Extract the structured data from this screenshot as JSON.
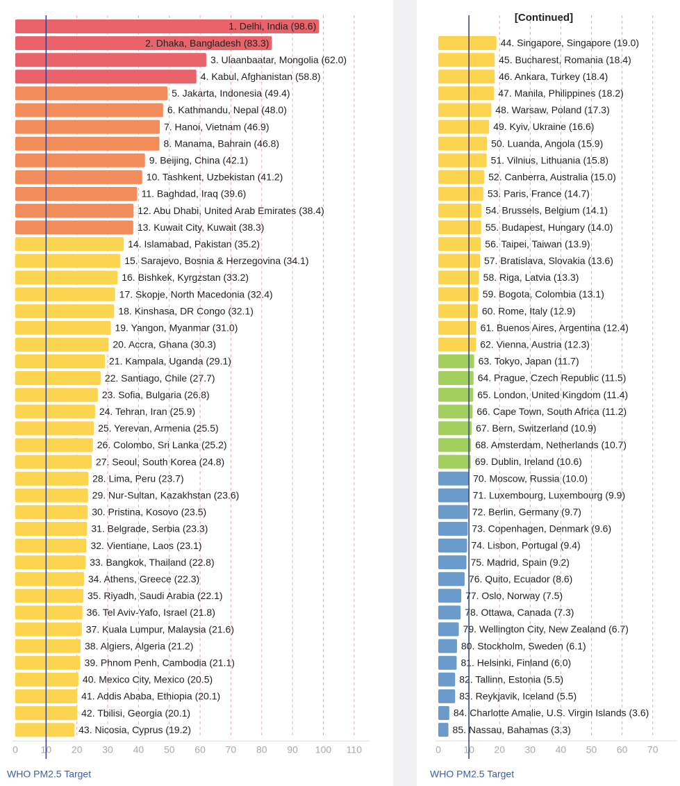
{
  "chart_data": [
    {
      "type": "bar",
      "categories": [
        "1. Delhi, India (98.6)",
        "2. Dhaka, Bangladesh (83.3)",
        "3. Ulaanbaatar, Mongolia (62.0)",
        "4. Kabul, Afghanistan (58.8)",
        "5. Jakarta, Indonesia (49.4)",
        "6. Kathmandu, Nepal (48.0)",
        "7. Hanoi, Vietnam (46.9)",
        "8. Manama, Bahrain (46.8)",
        "9. Beijing, China (42.1)",
        "10. Tashkent, Uzbekistan (41.2)",
        "11. Baghdad, Iraq (39.6)",
        "12. Abu Dhabi, United Arab Emirates (38.4)",
        "13. Kuwait City, Kuwait (38.3)",
        "14. Islamabad, Pakistan (35.2)",
        "15. Sarajevo, Bosnia & Herzegovina (34.1)",
        "16. Bishkek, Kyrgzstan (33.2)",
        "17. Skopje, North Macedonia (32.4)",
        "18. Kinshasa, DR Congo (32.1)",
        "19. Yangon, Myanmar (31.0)",
        "20. Accra, Ghana (30.3)",
        "21. Kampala, Uganda (29.1)",
        "22. Santiago, Chile (27.7)",
        "23. Sofia, Bulgaria (26.8)",
        "24. Tehran, Iran (25.9)",
        "25. Yerevan, Armenia (25.5)",
        "26. Colombo, Sri Lanka (25.2)",
        "27. Seoul, South Korea (24.8)",
        "28. Lima, Peru (23.7)",
        "29. Nur-Sultan, Kazakhstan (23.6)",
        "30. Pristina, Kosovo (23.5)",
        "31. Belgrade, Serbia (23.3)",
        "32. Vientiane, Laos (23.1)",
        "33. Bangkok, Thailand (22.8)",
        "34. Athens, Greece (22.3)",
        "35. Riyadh, Saudi Arabia (22.1)",
        "36. Tel Aviv-Yafo, Israel (21.8)",
        "37. Kuala Lumpur, Malaysia (21.6)",
        "38. Algiers, Algeria (21.2)",
        "39. Phnom Penh, Cambodia (21.1)",
        "40. Mexico City, Mexico (20.5)",
        "41. Addis Ababa, Ethiopia (20.1)",
        "42. Tbilisi, Georgia (20.1)",
        "43. Nicosia, Cyprus (19.2)"
      ],
      "values": [
        98.6,
        83.3,
        62.0,
        58.8,
        49.4,
        48.0,
        46.9,
        46.8,
        42.1,
        41.2,
        39.6,
        38.4,
        38.3,
        35.2,
        34.1,
        33.2,
        32.4,
        32.1,
        31.0,
        30.3,
        29.1,
        27.7,
        26.8,
        25.9,
        25.5,
        25.2,
        24.8,
        23.7,
        23.6,
        23.5,
        23.3,
        23.1,
        22.8,
        22.3,
        22.1,
        21.8,
        21.6,
        21.2,
        21.1,
        20.5,
        20.1,
        20.1,
        19.2
      ],
      "colors": [
        "#e9636b",
        "#e9636b",
        "#e9636b",
        "#e9636b",
        "#f28c5a",
        "#f28c5a",
        "#f28c5a",
        "#f28c5a",
        "#f28c5a",
        "#f28c5a",
        "#f28c5a",
        "#f28c5a",
        "#f28c5a",
        "#fcd450",
        "#fcd450",
        "#fcd450",
        "#fcd450",
        "#fcd450",
        "#fcd450",
        "#fcd450",
        "#fcd450",
        "#fcd450",
        "#fcd450",
        "#fcd450",
        "#fcd450",
        "#fcd450",
        "#fcd450",
        "#fcd450",
        "#fcd450",
        "#fcd450",
        "#fcd450",
        "#fcd450",
        "#fcd450",
        "#fcd450",
        "#fcd450",
        "#fcd450",
        "#fcd450",
        "#fcd450",
        "#fcd450",
        "#fcd450",
        "#fcd450",
        "#fcd450",
        "#fcd450"
      ],
      "xlim": [
        0,
        115
      ],
      "xticks": [
        0,
        10,
        20,
        30,
        40,
        50,
        60,
        70,
        80,
        90,
        100,
        110
      ],
      "grid": true,
      "annotation": {
        "text": "WHO PM2.5 Target",
        "x": 10
      }
    },
    {
      "type": "bar",
      "title": "[Continued]",
      "categories": [
        "44. Singapore, Singapore (19.0)",
        "45. Bucharest, Romania (18.4)",
        "46. Ankara, Turkey (18.4)",
        "47. Manila, Philippines (18.2)",
        "48. Warsaw, Poland (17.3)",
        "49. Kyiv, Ukraine (16.6)",
        "50. Luanda, Angola (15.9)",
        "51. Vilnius, Lithuania (15.8)",
        "52. Canberra, Australia (15.0)",
        "53. Paris, France (14.7)",
        "54. Brussels, Belgium (14.1)",
        "55. Budapest, Hungary (14.0)",
        "56. Taipei, Taiwan (13.9)",
        "57. Bratislava, Slovakia (13.6)",
        "58. Riga, Latvia (13.3)",
        "59. Bogota, Colombia (13.1)",
        "60. Rome, Italy (12.9)",
        "61. Buenos Aires, Argentina (12.4)",
        "62. Vienna, Austria (12.3)",
        "63. Tokyo, Japan (11.7)",
        "64. Prague, Czech Republic (11.5)",
        "65. London, United Kingdom (11.4)",
        "66. Cape Town, South Africa (11.2)",
        "67. Bern, Switzerland (10.9)",
        "68. Amsterdam, Netherlands (10.7)",
        "69. Dublin, Ireland (10.6)",
        "70. Moscow, Russia (10.0)",
        "71. Luxembourg, Luxembourg (9.9)",
        "72. Berlin, Germany (9.7)",
        "73. Copenhagen, Denmark (9.6)",
        "74. Lisbon, Portugal (9.4)",
        "75. Madrid, Spain (9.2)",
        "76. Quito, Ecuador (8.6)",
        "77. Oslo, Norway (7.5)",
        "78. Ottawa, Canada (7.3)",
        "79. Wellington City, New Zealand (6.7)",
        "80. Stockholm, Sweden (6.1)",
        "81. Helsinki, Finland (6.0)",
        "82. Tallinn, Estonia (5.5)",
        "83. Reykjavik, Iceland (5.5)",
        "84. Charlotte Amalie, U.S. Virgin Islands (3.6)",
        "85. Nassau, Bahamas (3.3)"
      ],
      "values": [
        19.0,
        18.4,
        18.4,
        18.2,
        17.3,
        16.6,
        15.9,
        15.8,
        15.0,
        14.7,
        14.1,
        14.0,
        13.9,
        13.6,
        13.3,
        13.1,
        12.9,
        12.4,
        12.3,
        11.7,
        11.5,
        11.4,
        11.2,
        10.9,
        10.7,
        10.6,
        10.0,
        9.9,
        9.7,
        9.6,
        9.4,
        9.2,
        8.6,
        7.5,
        7.3,
        6.7,
        6.1,
        6.0,
        5.5,
        5.5,
        3.6,
        3.3
      ],
      "colors": [
        "#fcd450",
        "#fcd450",
        "#fcd450",
        "#fcd450",
        "#fcd450",
        "#fcd450",
        "#fcd450",
        "#fcd450",
        "#fcd450",
        "#fcd450",
        "#fcd450",
        "#fcd450",
        "#fcd450",
        "#fcd450",
        "#fcd450",
        "#fcd450",
        "#fcd450",
        "#fcd450",
        "#fcd450",
        "#a3cf5e",
        "#a3cf5e",
        "#a3cf5e",
        "#a3cf5e",
        "#a3cf5e",
        "#a3cf5e",
        "#a3cf5e",
        "#6a9bcb",
        "#6a9bcb",
        "#6a9bcb",
        "#6a9bcb",
        "#6a9bcb",
        "#6a9bcb",
        "#6a9bcb",
        "#6a9bcb",
        "#6a9bcb",
        "#6a9bcb",
        "#6a9bcb",
        "#6a9bcb",
        "#6a9bcb",
        "#6a9bcb",
        "#6a9bcb",
        "#6a9bcb"
      ],
      "xlim": [
        0,
        78
      ],
      "xticks": [
        0,
        10,
        20,
        30,
        40,
        50,
        60,
        70
      ],
      "grid": true,
      "annotation": {
        "text": "WHO PM2.5 Target",
        "x": 10
      }
    }
  ]
}
